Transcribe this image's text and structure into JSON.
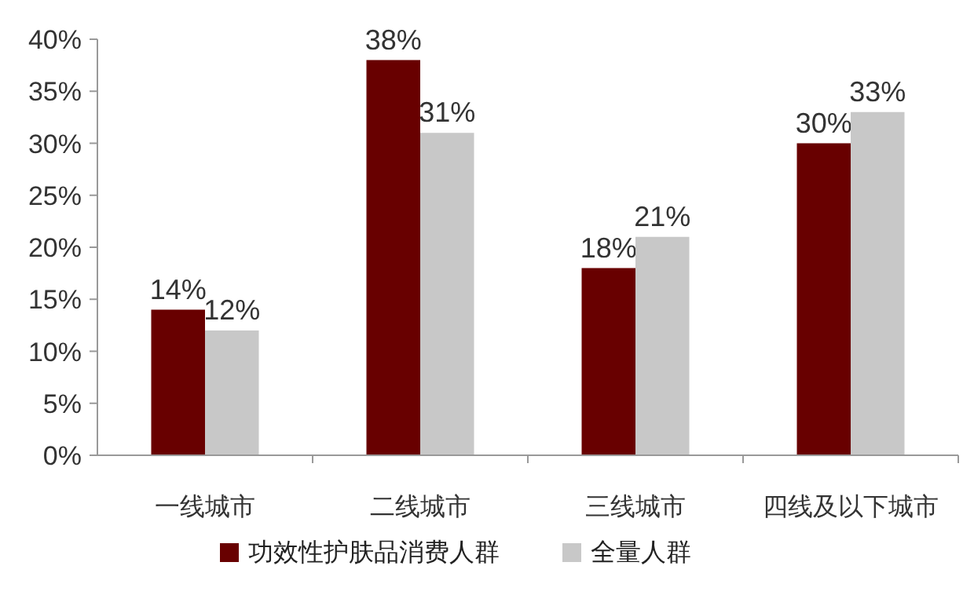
{
  "chart_data": {
    "type": "bar",
    "categories": [
      "一线城市",
      "二线城市",
      "三线城市",
      "四线及以下城市"
    ],
    "series": [
      {
        "name": "功效性护肤品消费人群",
        "color": "#680000",
        "values": [
          14,
          38,
          18,
          30
        ],
        "value_labels": [
          "14%",
          "38%",
          "18%",
          "30%"
        ]
      },
      {
        "name": "全量人群",
        "color": "#c8c8c8",
        "values": [
          12,
          31,
          21,
          33
        ],
        "value_labels": [
          "12%",
          "31%",
          "21%",
          "33%"
        ]
      }
    ],
    "ylim": [
      0,
      40
    ],
    "yticks": [
      {
        "value": 0,
        "label": "0%"
      },
      {
        "value": 5,
        "label": "5%"
      },
      {
        "value": 10,
        "label": "10%"
      },
      {
        "value": 15,
        "label": "15%"
      },
      {
        "value": 20,
        "label": "20%"
      },
      {
        "value": 25,
        "label": "25%"
      },
      {
        "value": 30,
        "label": "30%"
      },
      {
        "value": 35,
        "label": "35%"
      },
      {
        "value": 40,
        "label": "40%"
      }
    ],
    "legend": "bottom",
    "grid": false
  }
}
